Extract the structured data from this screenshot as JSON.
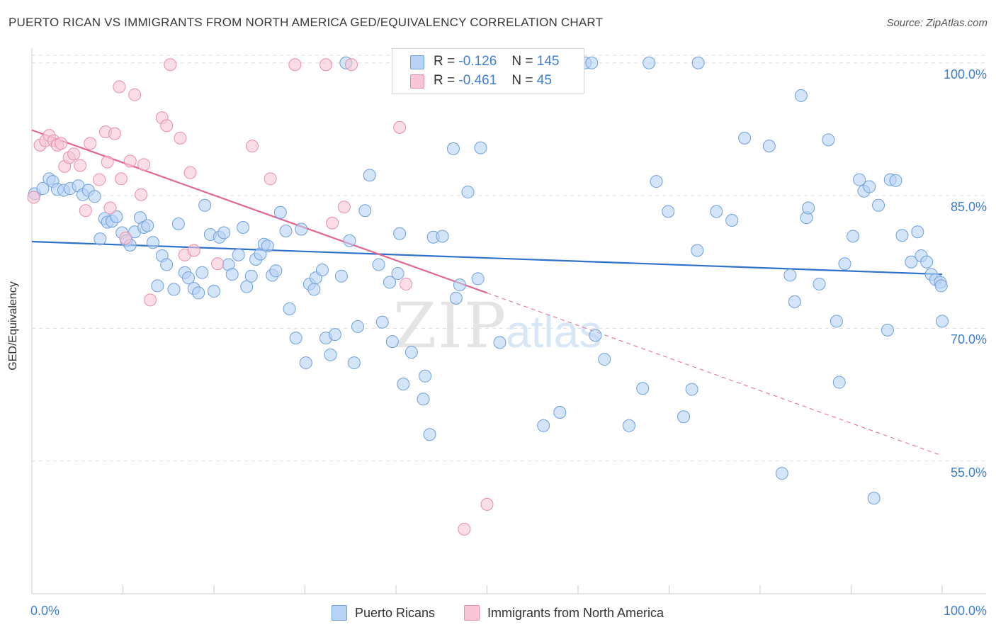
{
  "title": "PUERTO RICAN VS IMMIGRANTS FROM NORTH AMERICA GED/EQUIVALENCY CORRELATION CHART",
  "source": "Source: ZipAtlas.com",
  "watermark": "ZIPatlas",
  "colors": {
    "blue_fill": "#b8d2f5",
    "blue_stroke": "#6f9fdc",
    "blue_line": "#2f72cc",
    "pink_fill": "#f8c6d6",
    "pink_stroke": "#e88fac",
    "pink_line": "#e2668f",
    "grid": "#dddddd",
    "tick_text": "#3f7fd0"
  },
  "stats": [
    {
      "r_label": "R =",
      "r_value": "-0.126",
      "n_label": "N =",
      "n_value": "145",
      "series": "blue"
    },
    {
      "r_label": "R =",
      "r_value": "-0.461",
      "n_label": "N =",
      "n_value": "45",
      "series": "pink"
    }
  ],
  "legend": [
    {
      "label": "Puerto Ricans",
      "series": "blue"
    },
    {
      "label": "Immigrants from North America",
      "series": "pink"
    }
  ],
  "chart_data": {
    "type": "scatter",
    "title": "PUERTO RICAN VS IMMIGRANTS FROM NORTH AMERICA GED/EQUIVALENCY CORRELATION CHART",
    "xlabel": "",
    "ylabel": "GED/Equivalency",
    "xlim": [
      0,
      100
    ],
    "ylim": [
      40,
      101.5
    ],
    "y_ticks": [
      {
        "value": 100,
        "label": "100.0%"
      },
      {
        "value": 85,
        "label": "85.0%"
      },
      {
        "value": 70,
        "label": "70.0%"
      },
      {
        "value": 55,
        "label": "55.0%"
      }
    ],
    "x_tick_labels": [
      {
        "value": 0,
        "label": "0.0%"
      },
      {
        "value": 100,
        "label": "100.0%"
      }
    ],
    "grid": true,
    "legend_position": "bottom-center",
    "series": [
      {
        "name": "Puerto Ricans",
        "color": "blue",
        "trend": {
          "x0": 0,
          "y0": 79.8,
          "x1": 100,
          "y1": 76.1,
          "solid_to": 100
        },
        "points": [
          [
            0.3,
            85.2
          ],
          [
            1.2,
            85.8
          ],
          [
            1.9,
            86.9
          ],
          [
            2.3,
            86.6
          ],
          [
            2.8,
            85.7
          ],
          [
            3.5,
            85.6
          ],
          [
            4.2,
            85.8
          ],
          [
            5.1,
            86.1
          ],
          [
            5.6,
            85.1
          ],
          [
            6.2,
            85.6
          ],
          [
            6.9,
            84.9
          ],
          [
            7.5,
            80.1
          ],
          [
            8.0,
            82.4
          ],
          [
            8.3,
            82.0
          ],
          [
            8.8,
            82.1
          ],
          [
            9.3,
            82.6
          ],
          [
            9.9,
            80.8
          ],
          [
            10.4,
            79.9
          ],
          [
            10.8,
            79.4
          ],
          [
            11.3,
            80.9
          ],
          [
            11.9,
            82.5
          ],
          [
            12.3,
            81.4
          ],
          [
            12.7,
            81.6
          ],
          [
            13.3,
            79.7
          ],
          [
            13.8,
            74.8
          ],
          [
            14.3,
            78.2
          ],
          [
            14.8,
            77.2
          ],
          [
            15.6,
            74.4
          ],
          [
            16.1,
            81.8
          ],
          [
            16.8,
            76.3
          ],
          [
            17.2,
            75.7
          ],
          [
            17.8,
            74.5
          ],
          [
            18.3,
            74.0
          ],
          [
            18.7,
            76.3
          ],
          [
            19.0,
            83.9
          ],
          [
            19.6,
            80.6
          ],
          [
            20.0,
            74.2
          ],
          [
            20.6,
            80.3
          ],
          [
            21.1,
            80.8
          ],
          [
            21.6,
            77.2
          ],
          [
            22.0,
            76.1
          ],
          [
            22.7,
            78.3
          ],
          [
            23.2,
            81.4
          ],
          [
            23.6,
            74.7
          ],
          [
            24.1,
            75.9
          ],
          [
            24.6,
            77.8
          ],
          [
            25.1,
            78.4
          ],
          [
            25.5,
            79.5
          ],
          [
            25.9,
            79.3
          ],
          [
            26.4,
            76.0
          ],
          [
            26.8,
            76.5
          ],
          [
            27.3,
            83.1
          ],
          [
            27.9,
            81.0
          ],
          [
            28.3,
            72.2
          ],
          [
            29.0,
            68.9
          ],
          [
            29.6,
            81.2
          ],
          [
            30.1,
            66.1
          ],
          [
            30.5,
            75.0
          ],
          [
            31.0,
            74.4
          ],
          [
            31.2,
            75.7
          ],
          [
            31.9,
            76.6
          ],
          [
            32.3,
            68.9
          ],
          [
            32.8,
            67.0
          ],
          [
            33.3,
            69.3
          ],
          [
            34.0,
            75.9
          ],
          [
            34.5,
            100.0
          ],
          [
            34.9,
            79.9
          ],
          [
            35.4,
            66.1
          ],
          [
            35.8,
            70.2
          ],
          [
            36.6,
            83.3
          ],
          [
            37.1,
            87.3
          ],
          [
            38.1,
            77.2
          ],
          [
            38.5,
            70.7
          ],
          [
            39.3,
            75.2
          ],
          [
            39.6,
            68.5
          ],
          [
            40.2,
            76.2
          ],
          [
            40.4,
            80.7
          ],
          [
            40.8,
            63.7
          ],
          [
            41.7,
            67.3
          ],
          [
            43.0,
            62.0
          ],
          [
            43.2,
            64.6
          ],
          [
            43.7,
            58.0
          ],
          [
            44.1,
            80.3
          ],
          [
            45.1,
            80.4
          ],
          [
            46.3,
            90.3
          ],
          [
            46.6,
            73.4
          ],
          [
            47.0,
            74.9
          ],
          [
            47.9,
            85.4
          ],
          [
            49.0,
            75.6
          ],
          [
            49.3,
            90.4
          ],
          [
            51.4,
            68.4
          ],
          [
            55.6,
            100.0
          ],
          [
            56.2,
            59.0
          ],
          [
            58.0,
            60.5
          ],
          [
            60.8,
            100.0
          ],
          [
            61.5,
            100.0
          ],
          [
            61.9,
            69.2
          ],
          [
            62.9,
            66.5
          ],
          [
            65.6,
            59.0
          ],
          [
            67.1,
            63.2
          ],
          [
            67.8,
            100.0
          ],
          [
            68.6,
            86.6
          ],
          [
            69.9,
            83.2
          ],
          [
            71.6,
            60.0
          ],
          [
            72.5,
            63.1
          ],
          [
            73.1,
            78.8
          ],
          [
            73.2,
            100.0
          ],
          [
            75.2,
            83.2
          ],
          [
            76.9,
            82.2
          ],
          [
            78.3,
            91.5
          ],
          [
            81.0,
            90.6
          ],
          [
            82.4,
            53.6
          ],
          [
            83.3,
            76.0
          ],
          [
            83.8,
            73.0
          ],
          [
            84.5,
            96.3
          ],
          [
            85.1,
            82.5
          ],
          [
            85.3,
            83.6
          ],
          [
            86.5,
            75.0
          ],
          [
            87.5,
            91.3
          ],
          [
            88.4,
            70.8
          ],
          [
            88.7,
            63.9
          ],
          [
            89.3,
            77.3
          ],
          [
            90.2,
            80.4
          ],
          [
            90.9,
            86.8
          ],
          [
            91.4,
            85.5
          ],
          [
            92.0,
            86.0
          ],
          [
            92.5,
            50.8
          ],
          [
            93.0,
            83.9
          ],
          [
            94.0,
            69.8
          ],
          [
            94.3,
            86.8
          ],
          [
            94.9,
            86.7
          ],
          [
            95.6,
            80.5
          ],
          [
            96.6,
            77.5
          ],
          [
            97.3,
            80.9
          ],
          [
            97.7,
            78.2
          ],
          [
            98.3,
            77.5
          ],
          [
            98.8,
            76.1
          ],
          [
            99.3,
            75.5
          ],
          [
            99.8,
            75.2
          ],
          [
            99.9,
            74.8
          ],
          [
            100.0,
            70.8
          ]
        ]
      },
      {
        "name": "Immigrants from North America",
        "color": "pink",
        "trend": {
          "x0": 0,
          "y0": 92.4,
          "x1": 100,
          "y1": 55.6,
          "solid_to": 50
        },
        "points": [
          [
            0.2,
            84.8
          ],
          [
            0.9,
            90.7
          ],
          [
            1.5,
            91.2
          ],
          [
            1.9,
            91.8
          ],
          [
            2.4,
            91.2
          ],
          [
            2.8,
            90.7
          ],
          [
            3.2,
            90.9
          ],
          [
            3.6,
            88.3
          ],
          [
            4.1,
            89.3
          ],
          [
            4.6,
            89.7
          ],
          [
            5.3,
            88.4
          ],
          [
            5.9,
            83.3
          ],
          [
            6.4,
            90.9
          ],
          [
            7.4,
            86.8
          ],
          [
            8.1,
            92.2
          ],
          [
            8.3,
            88.8
          ],
          [
            8.6,
            83.6
          ],
          [
            9.1,
            92.0
          ],
          [
            9.6,
            97.3
          ],
          [
            9.8,
            86.9
          ],
          [
            10.3,
            80.2
          ],
          [
            10.8,
            88.9
          ],
          [
            11.3,
            96.4
          ],
          [
            12.0,
            85.1
          ],
          [
            12.3,
            88.5
          ],
          [
            13.0,
            73.2
          ],
          [
            14.3,
            93.8
          ],
          [
            14.8,
            92.9
          ],
          [
            15.2,
            99.8
          ],
          [
            16.3,
            91.5
          ],
          [
            16.8,
            78.3
          ],
          [
            17.4,
            87.6
          ],
          [
            17.8,
            78.8
          ],
          [
            20.4,
            77.3
          ],
          [
            24.2,
            90.6
          ],
          [
            26.2,
            86.9
          ],
          [
            28.9,
            99.8
          ],
          [
            32.3,
            99.8
          ],
          [
            33.0,
            81.9
          ],
          [
            34.3,
            83.7
          ],
          [
            35.1,
            99.8
          ],
          [
            40.4,
            92.7
          ],
          [
            41.1,
            75.0
          ],
          [
            47.5,
            47.3
          ],
          [
            50.0,
            50.1
          ]
        ]
      }
    ]
  }
}
